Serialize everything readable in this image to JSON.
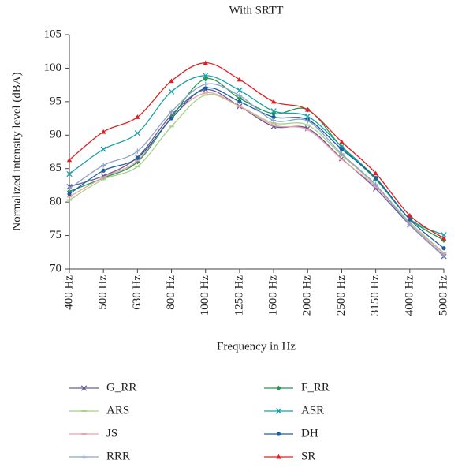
{
  "chart_data": {
    "type": "line",
    "title": "With SRTT",
    "x_label": "Frequency in Hz",
    "y_label": "Normalized intensity level (dBA)",
    "categories": [
      "400 Hz",
      "500 Hz",
      "630 Hz",
      "800 Hz",
      "1000 Hz",
      "1250 Hz",
      "1600 Hz",
      "2000 Hz",
      "2500 Hz",
      "3150 Hz",
      "4000 Hz",
      "5000 Hz"
    ],
    "ylim": [
      70,
      105
    ],
    "yticks": [
      70,
      75,
      80,
      85,
      90,
      95,
      100,
      105
    ],
    "series": [
      {
        "name": "G_RR",
        "color": "#6a5a9a",
        "marker": "x",
        "values": [
          82.3,
          83.9,
          86.7,
          93.0,
          96.8,
          94.3,
          91.3,
          91.0,
          86.5,
          82.0,
          76.6,
          71.9
        ]
      },
      {
        "name": "F_RR",
        "color": "#1e9a50",
        "marker": "diamond",
        "values": [
          81.6,
          83.6,
          86.0,
          92.7,
          98.4,
          95.5,
          93.2,
          93.8,
          88.2,
          83.4,
          77.5,
          74.3
        ]
      },
      {
        "name": "ARS",
        "color": "#a6d18a",
        "marker": "dash",
        "values": [
          80.3,
          83.4,
          85.3,
          91.3,
          96.0,
          94.3,
          91.8,
          91.5,
          87.0,
          82.5,
          77.0,
          72.4
        ]
      },
      {
        "name": "ASR",
        "color": "#1aa0a8",
        "marker": "x",
        "values": [
          84.2,
          87.9,
          90.3,
          96.5,
          98.9,
          96.7,
          93.6,
          92.8,
          88.3,
          83.6,
          77.5,
          75.1
        ]
      },
      {
        "name": "JS",
        "color": "#f0a0a8",
        "marker": "dash",
        "values": [
          80.8,
          83.7,
          86.2,
          92.6,
          96.3,
          94.3,
          91.5,
          90.8,
          86.4,
          82.3,
          76.8,
          72.3
        ]
      },
      {
        "name": "DH",
        "color": "#1f5fa0",
        "marker": "circle",
        "values": [
          81.2,
          84.7,
          86.6,
          92.5,
          97.0,
          95.0,
          92.7,
          92.3,
          87.9,
          83.6,
          77.4,
          73.1
        ]
      },
      {
        "name": "RRR",
        "color": "#8aa4c8",
        "marker": "plus",
        "values": [
          82.0,
          85.5,
          87.6,
          93.5,
          97.6,
          95.9,
          92.2,
          92.1,
          87.2,
          82.6,
          76.7,
          72.0
        ]
      },
      {
        "name": "SR",
        "color": "#e02020",
        "marker": "triangle",
        "values": [
          86.3,
          90.5,
          92.7,
          98.1,
          100.8,
          98.3,
          95.0,
          93.8,
          89.0,
          84.3,
          78.0,
          74.6
        ]
      }
    ]
  }
}
